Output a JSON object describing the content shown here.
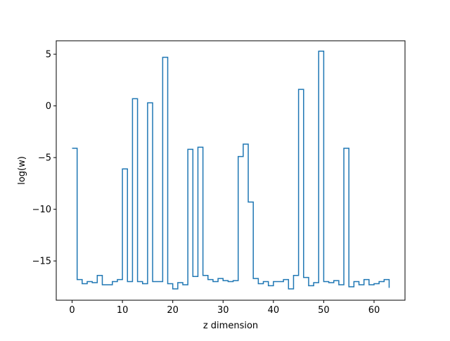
{
  "chart_data": {
    "type": "line",
    "drawstyle": "steps-post",
    "title": "",
    "xlabel": "z dimension",
    "ylabel": "log(w)",
    "xlim": [
      -3.15,
      66.15
    ],
    "ylim": [
      -18.8,
      6.3
    ],
    "xticks": [
      0,
      10,
      20,
      30,
      40,
      50,
      60
    ],
    "yticks": [
      -15,
      -10,
      -5,
      0,
      5
    ],
    "ytick_labels": [
      "−15",
      "−10",
      "−5",
      "0",
      "5"
    ],
    "grid": false,
    "line_color": "#1f77b4",
    "x": [
      0,
      1,
      2,
      3,
      4,
      5,
      6,
      7,
      8,
      9,
      10,
      11,
      12,
      13,
      14,
      15,
      16,
      17,
      18,
      19,
      20,
      21,
      22,
      23,
      24,
      25,
      26,
      27,
      28,
      29,
      30,
      31,
      32,
      33,
      34,
      35,
      36,
      37,
      38,
      39,
      40,
      41,
      42,
      43,
      44,
      45,
      46,
      47,
      48,
      49,
      50,
      51,
      52,
      53,
      54,
      55,
      56,
      57,
      58,
      59,
      60,
      61,
      62,
      63
    ],
    "values": [
      -4.1,
      -16.8,
      -17.2,
      -17.0,
      -17.1,
      -16.4,
      -17.3,
      -17.3,
      -17.0,
      -16.8,
      -6.1,
      -17.0,
      0.7,
      -17.0,
      -17.2,
      0.3,
      -17.0,
      -17.0,
      4.7,
      -17.2,
      -17.7,
      -17.1,
      -17.3,
      -4.2,
      -16.5,
      -4.0,
      -16.4,
      -16.8,
      -17.0,
      -16.7,
      -16.9,
      -17.0,
      -16.9,
      -4.9,
      -3.7,
      -9.3,
      -16.7,
      -17.2,
      -17.0,
      -17.4,
      -17.0,
      -17.0,
      -16.8,
      -17.7,
      -16.4,
      1.6,
      -16.6,
      -17.4,
      -17.1,
      5.3,
      -17.0,
      -17.1,
      -16.9,
      -17.3,
      -4.1,
      -17.5,
      -17.0,
      -17.3,
      -16.8,
      -17.3,
      -17.2,
      -17.0,
      -16.8,
      -17.6
    ],
    "series": []
  }
}
